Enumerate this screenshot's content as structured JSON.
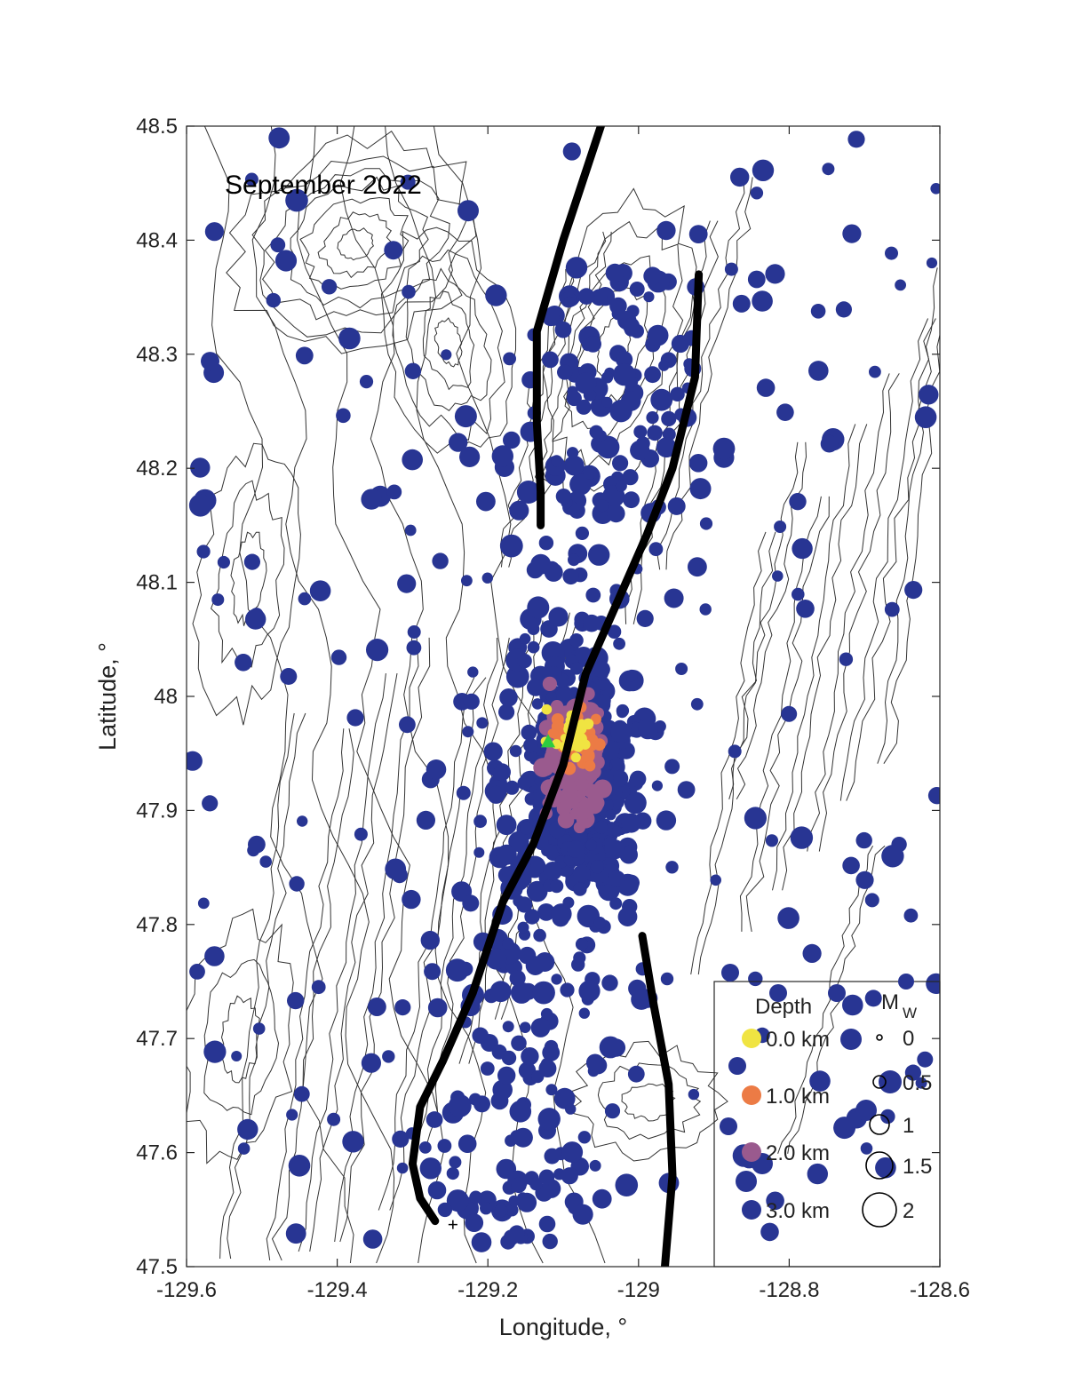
{
  "map": {
    "title": "September 2022",
    "xlabel": "Longitude, °",
    "ylabel": "Latitude, °",
    "xlim": [
      -129.6,
      -128.6
    ],
    "ylim": [
      47.5,
      48.5
    ],
    "xticks": [
      -129.6,
      -129.4,
      -129.2,
      -129.0,
      -128.8,
      -128.6
    ],
    "xtick_labels": [
      "-129.6",
      "-129.4",
      "-129.2",
      "-129",
      "-128.8",
      "-128.6"
    ],
    "yticks": [
      47.5,
      47.6,
      47.7,
      47.8,
      47.9,
      48.0,
      48.1,
      48.2,
      48.3,
      48.4,
      48.5
    ],
    "ytick_labels": [
      "47.5",
      "47.6",
      "47.7",
      "47.8",
      "47.9",
      "48",
      "48.1",
      "48.2",
      "48.3",
      "48.4",
      "48.5"
    ],
    "colors": {
      "shallow": "#f0e442",
      "depth_1km": "#ec7b45",
      "depth_2km": "#9a5a8e",
      "deep": "#283593",
      "contour": "#333333",
      "fault": "#000000",
      "station": "#2ecc40"
    },
    "legend": {
      "depth_title": "Depth",
      "depth_items": [
        {
          "label": "0.0 km",
          "color": "#f0e442"
        },
        {
          "label": "1.0 km",
          "color": "#ec7b45"
        },
        {
          "label": "2.0 km",
          "color": "#9a5a8e"
        },
        {
          "label": "3.0 km",
          "color": "#283593"
        }
      ],
      "mag_title_main": "M",
      "mag_title_sub": "W",
      "mag_items": [
        {
          "label": "0",
          "mag": 0
        },
        {
          "label": "0.5",
          "mag": 0.5
        },
        {
          "label": "1",
          "mag": 1
        },
        {
          "label": "1.5",
          "mag": 1.5
        },
        {
          "label": "2",
          "mag": 2
        }
      ]
    },
    "faults": [
      [
        [
          -129.05,
          48.5
        ],
        [
          -129.1,
          48.4
        ],
        [
          -129.135,
          48.32
        ],
        [
          -129.135,
          48.24
        ],
        [
          -129.13,
          48.18
        ],
        [
          -129.13,
          48.15
        ]
      ],
      [
        [
          -128.92,
          48.37
        ],
        [
          -128.925,
          48.28
        ],
        [
          -128.955,
          48.2
        ],
        [
          -128.99,
          48.14
        ],
        [
          -129.03,
          48.08
        ],
        [
          -129.07,
          48.02
        ],
        [
          -129.1,
          47.94
        ],
        [
          -129.14,
          47.87
        ],
        [
          -129.18,
          47.82
        ],
        [
          -129.22,
          47.74
        ],
        [
          -129.26,
          47.68
        ],
        [
          -129.29,
          47.64
        ],
        [
          -129.3,
          47.59
        ],
        [
          -129.29,
          47.56
        ],
        [
          -129.27,
          47.54
        ]
      ],
      [
        [
          -128.995,
          47.79
        ],
        [
          -128.98,
          47.73
        ],
        [
          -128.96,
          47.66
        ],
        [
          -128.955,
          47.58
        ],
        [
          -128.965,
          47.5
        ]
      ]
    ],
    "station": [
      -129.12,
      47.96
    ]
  }
}
